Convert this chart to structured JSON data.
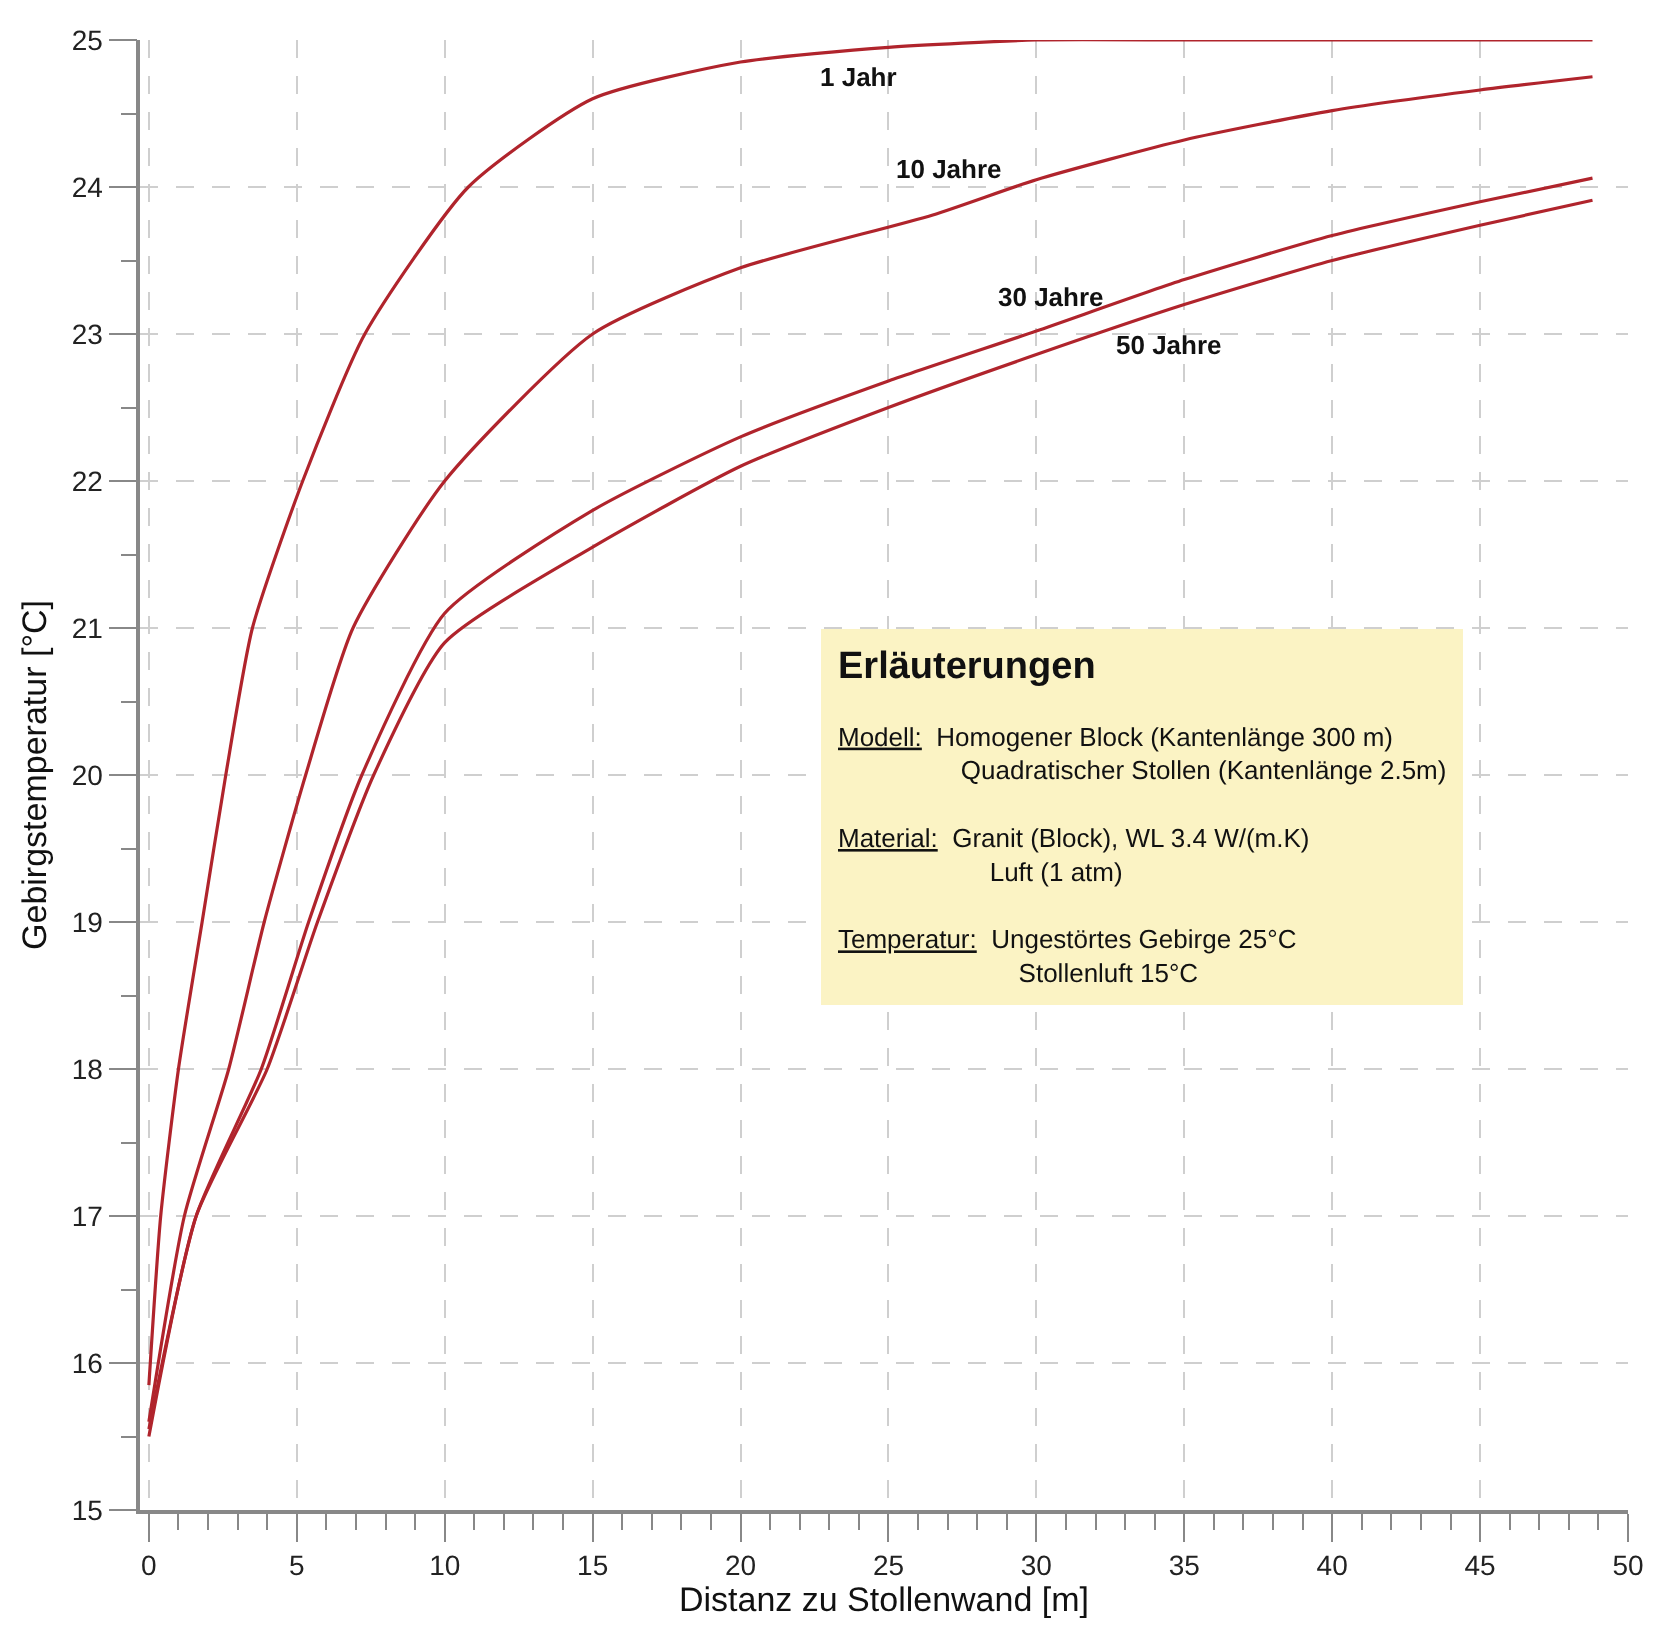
{
  "chart_data": {
    "type": "line",
    "xlabel": "Distanz zu Stollenwand [m]",
    "ylabel": "Gebirgstemperatur [°C]",
    "xlim": [
      -0.3,
      50
    ],
    "xticks": [
      0,
      5,
      10,
      15,
      20,
      25,
      30,
      35,
      40,
      45,
      50
    ],
    "ylim": [
      15,
      25
    ],
    "yticks": [
      15,
      16,
      17,
      18,
      19,
      20,
      21,
      22,
      23,
      24,
      25
    ],
    "grid": true,
    "line_style": "solid",
    "marker": "none",
    "series": [
      {
        "name": "1 Jahr",
        "color": "#b0242c",
        "x": [
          0,
          0.4,
          1.0,
          1.8,
          2.6,
          3.5,
          5.2,
          7.3,
          10.8,
          15,
          20,
          25,
          30,
          35,
          40,
          45,
          48.8
        ],
        "values": [
          15.85,
          17,
          18,
          19,
          20,
          21,
          22,
          23,
          24,
          24.6,
          24.85,
          24.95,
          25,
          25,
          25,
          25,
          25
        ]
      },
      {
        "name": "10 Jahre",
        "color": "#b0242c",
        "x": [
          0,
          1.2,
          2.7,
          3.9,
          5.3,
          6.9,
          10,
          15,
          20,
          26.5,
          30,
          35,
          40,
          45,
          48.8
        ],
        "values": [
          15.6,
          17,
          18,
          19,
          20,
          21,
          22,
          23,
          23.45,
          23.81,
          24.05,
          24.32,
          24.52,
          24.66,
          24.75
        ]
      },
      {
        "name": "30 Jahre",
        "color": "#b0242c",
        "x": [
          0,
          1.6,
          3.8,
          5.4,
          7.2,
          10,
          15,
          20,
          25,
          30,
          35,
          40,
          45,
          48.8
        ],
        "values": [
          15.55,
          17,
          18,
          19,
          20,
          21.1,
          21.8,
          22.3,
          22.68,
          23.02,
          23.37,
          23.67,
          23.9,
          24.06
        ]
      },
      {
        "name": "50 Jahre",
        "color": "#b0242c",
        "x": [
          0,
          1.6,
          4.0,
          5.7,
          7.6,
          10,
          15,
          20,
          25,
          30,
          35,
          40,
          45,
          48.8
        ],
        "values": [
          15.5,
          17,
          18,
          19,
          20,
          20.9,
          21.55,
          22.1,
          22.5,
          22.86,
          23.2,
          23.5,
          23.74,
          23.91
        ]
      }
    ],
    "annotations": [
      "Erläuterungen",
      "Modell:",
      "Homogener Block (Kantenlänge 300 m)",
      "Quadratischer Stollen (Kantenlänge 2.5m)",
      "Material:",
      "Granit (Block), WL 3.4 W/(m.K)",
      "Luft (1 atm)",
      "Temperatur:",
      "Ungestörtes Gebirge 25°C",
      "Stollenluft 15°C"
    ]
  }
}
